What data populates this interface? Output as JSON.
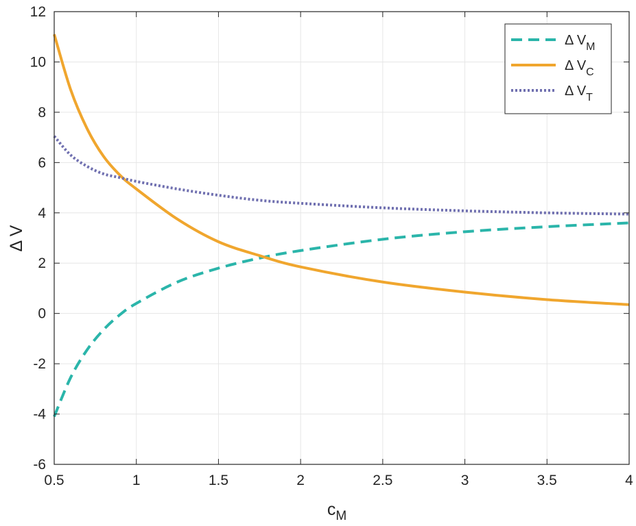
{
  "chart_data": {
    "type": "line",
    "xlabel": "c",
    "xlabel_sub": "M",
    "ylabel": "Δ V",
    "xlim": [
      0.5,
      4
    ],
    "ylim": [
      -6,
      12
    ],
    "xticks": [
      "0.5",
      "1",
      "1.5",
      "2",
      "2.5",
      "3",
      "3.5",
      "4"
    ],
    "yticks": [
      "-6",
      "-4",
      "-2",
      "0",
      "2",
      "4",
      "6",
      "8",
      "10",
      "12"
    ],
    "grid": true,
    "legend_position": "top-right",
    "x": [
      0.5,
      0.6,
      0.7,
      0.8,
      0.9,
      1.0,
      1.25,
      1.5,
      1.75,
      2.0,
      2.5,
      3.0,
      3.5,
      4.0
    ],
    "series": [
      {
        "name": "Δ V",
        "name_sub": "M",
        "style": "dashed",
        "color": "#2bb5aa",
        "values": [
          -4.1,
          -2.55,
          -1.45,
          -0.65,
          -0.05,
          0.4,
          1.25,
          1.8,
          2.2,
          2.5,
          2.95,
          3.25,
          3.45,
          3.6
        ]
      },
      {
        "name": "Δ V",
        "name_sub": "C",
        "style": "solid",
        "color": "#f0a62e",
        "values": [
          11.1,
          8.9,
          7.35,
          6.25,
          5.5,
          4.95,
          3.75,
          2.85,
          2.3,
          1.85,
          1.25,
          0.85,
          0.55,
          0.35
        ]
      },
      {
        "name": "Δ V",
        "name_sub": "T",
        "style": "dotted",
        "color": "#7070b0",
        "values": [
          7.05,
          6.3,
          5.85,
          5.55,
          5.4,
          5.25,
          4.95,
          4.7,
          4.5,
          4.38,
          4.2,
          4.08,
          4.0,
          3.95
        ]
      }
    ]
  }
}
